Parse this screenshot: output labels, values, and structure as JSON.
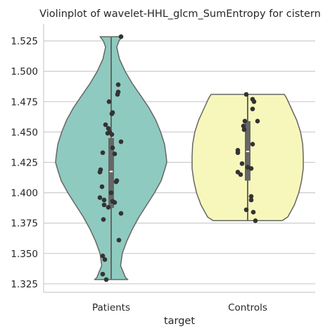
{
  "chart_data": {
    "type": "violin",
    "title": "Violinplot of wavelet-HHL_glcm_SumEntropy for cistern",
    "xlabel": "target",
    "ylabel": "",
    "categories": [
      "Patients",
      "Controls"
    ],
    "ylim": [
      1.318,
      1.539
    ],
    "yticks": [
      1.325,
      1.35,
      1.375,
      1.4,
      1.425,
      1.45,
      1.475,
      1.5,
      1.525
    ],
    "ytick_labels": [
      "1.325",
      "1.350",
      "1.375",
      "1.400",
      "1.425",
      "1.450",
      "1.475",
      "1.500",
      "1.525"
    ],
    "grid": true,
    "colors": {
      "Patients": "#8ecabf",
      "Controls": "#f7f7bb",
      "outline": "#666666",
      "points": "#333333",
      "box": "#666666",
      "median": "#ffffff",
      "grid": "#cccccc",
      "axis": "#cccccc"
    },
    "violins": [
      {
        "name": "Patients",
        "range": [
          1.3285,
          1.5285
        ],
        "profile": [
          [
            1.3285,
            0.3
          ],
          [
            1.33,
            0.26
          ],
          [
            1.34,
            0.17
          ],
          [
            1.35,
            0.2
          ],
          [
            1.36,
            0.28
          ],
          [
            1.37,
            0.38
          ],
          [
            1.38,
            0.5
          ],
          [
            1.39,
            0.64
          ],
          [
            1.4,
            0.78
          ],
          [
            1.41,
            0.9
          ],
          [
            1.42,
            0.97
          ],
          [
            1.425,
            1.0
          ],
          [
            1.43,
            0.99
          ],
          [
            1.44,
            0.96
          ],
          [
            1.45,
            0.89
          ],
          [
            1.46,
            0.8
          ],
          [
            1.47,
            0.68
          ],
          [
            1.48,
            0.53
          ],
          [
            1.49,
            0.38
          ],
          [
            1.5,
            0.25
          ],
          [
            1.51,
            0.15
          ],
          [
            1.52,
            0.1
          ],
          [
            1.525,
            0.14
          ],
          [
            1.5285,
            0.2
          ]
        ],
        "box": {
          "q1": 1.3875,
          "median": 1.4175,
          "q3": 1.445,
          "whisker_low": 1.3285,
          "whisker_high": 1.5285
        },
        "points": [
          [
            0.7,
            1.5285
          ],
          [
            0.5,
            1.489
          ],
          [
            0.5,
            1.483
          ],
          [
            0.45,
            1.481
          ],
          [
            -0.15,
            1.475
          ],
          [
            0.1,
            1.466
          ],
          [
            0.05,
            1.465
          ],
          [
            -0.4,
            1.456
          ],
          [
            -0.2,
            1.453
          ],
          [
            -0.1,
            1.45
          ],
          [
            -0.25,
            1.449
          ],
          [
            0.05,
            1.448
          ],
          [
            0.7,
            1.442
          ],
          [
            0.1,
            1.437
          ],
          [
            -0.6,
            1.433
          ],
          [
            0.25,
            1.432
          ],
          [
            -0.75,
            1.419
          ],
          [
            -0.8,
            1.417
          ],
          [
            0.4,
            1.41
          ],
          [
            0.35,
            1.409
          ],
          [
            -0.65,
            1.405
          ],
          [
            0.0,
            1.4
          ],
          [
            -0.8,
            1.396
          ],
          [
            -0.5,
            1.394
          ],
          [
            0.1,
            1.393
          ],
          [
            0.25,
            1.392
          ],
          [
            -0.5,
            1.39
          ],
          [
            -0.2,
            1.388
          ],
          [
            0.7,
            1.383
          ],
          [
            -0.55,
            1.378
          ],
          [
            0.55,
            1.361
          ],
          [
            -0.6,
            1.348
          ],
          [
            -0.45,
            1.345
          ],
          [
            -0.6,
            1.333
          ],
          [
            -0.35,
            1.3285
          ]
        ]
      },
      {
        "name": "Controls",
        "range": [
          1.377,
          1.481
        ],
        "profile": [
          [
            1.377,
            0.62
          ],
          [
            1.38,
            0.72
          ],
          [
            1.39,
            0.84
          ],
          [
            1.4,
            0.92
          ],
          [
            1.41,
            0.97
          ],
          [
            1.42,
            1.0
          ],
          [
            1.43,
            1.0
          ],
          [
            1.44,
            0.99
          ],
          [
            1.45,
            0.95
          ],
          [
            1.46,
            0.88
          ],
          [
            1.47,
            0.78
          ],
          [
            1.478,
            0.7
          ],
          [
            1.481,
            0.66
          ]
        ],
        "box": {
          "q1": 1.41,
          "median": 1.434,
          "q3": 1.459,
          "whisker_low": 1.377,
          "whisker_high": 1.481
        },
        "points": [
          [
            -0.1,
            1.481
          ],
          [
            0.35,
            1.477
          ],
          [
            0.45,
            1.475
          ],
          [
            0.35,
            1.469
          ],
          [
            0.7,
            1.459
          ],
          [
            -0.2,
            1.459
          ],
          [
            -0.3,
            1.455
          ],
          [
            -0.25,
            1.452
          ],
          [
            0.35,
            1.44
          ],
          [
            -0.7,
            1.435
          ],
          [
            -0.7,
            1.433
          ],
          [
            -0.4,
            1.424
          ],
          [
            0.0,
            1.421
          ],
          [
            0.25,
            1.42
          ],
          [
            -0.7,
            1.417
          ],
          [
            -0.5,
            1.415
          ],
          [
            0.25,
            1.397
          ],
          [
            0.25,
            1.394
          ],
          [
            -0.1,
            1.386
          ],
          [
            0.4,
            1.384
          ],
          [
            0.55,
            1.377
          ]
        ]
      }
    ]
  }
}
